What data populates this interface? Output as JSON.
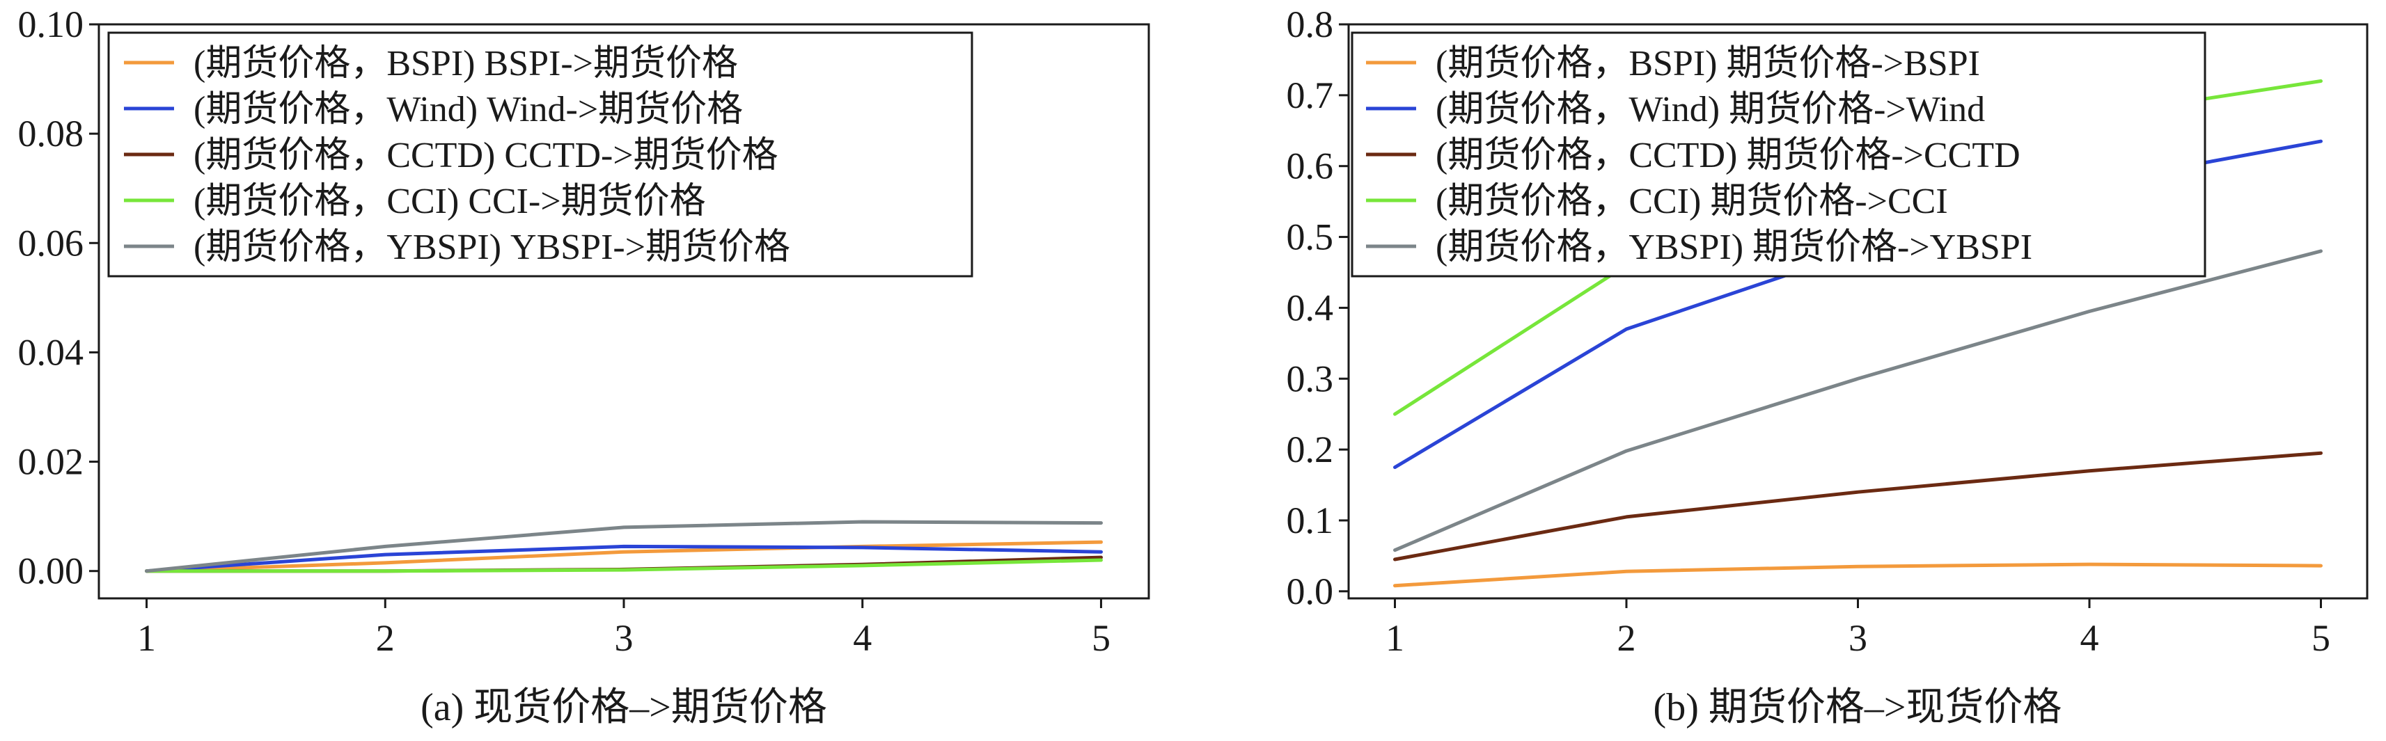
{
  "chart_data": [
    {
      "type": "line",
      "title": "",
      "caption": "(a) 现货价格–>期货价格",
      "xlabel": "",
      "ylabel": "",
      "x": [
        1,
        2,
        3,
        4,
        5
      ],
      "xticks": [
        "1",
        "2",
        "3",
        "4",
        "5"
      ],
      "xlim": [
        0.8,
        5.2
      ],
      "ylim": [
        -0.005,
        0.1
      ],
      "yticks": [
        "0.00",
        "0.02",
        "0.04",
        "0.06",
        "0.08",
        "0.10"
      ],
      "ytick_values": [
        0.0,
        0.02,
        0.04,
        0.06,
        0.08,
        0.1
      ],
      "grid": false,
      "legend_position": "top-left",
      "series": [
        {
          "name": "(期货价格，BSPI) BSPI->期货价格",
          "color": "#f39a3c",
          "values": [
            0.0,
            0.0015,
            0.0035,
            0.0045,
            0.0053
          ]
        },
        {
          "name": "(期货价格，Wind) Wind->期货价格",
          "color": "#2a44d6",
          "values": [
            0.0,
            0.003,
            0.0045,
            0.0043,
            0.0035
          ]
        },
        {
          "name": "(期货价格，CCTD) CCTD->期货价格",
          "color": "#6b2a12",
          "values": [
            0.0,
            0.0,
            0.0003,
            0.0012,
            0.0025
          ]
        },
        {
          "name": "(期货价格，CCI) CCI->期货价格",
          "color": "#77e63a",
          "values": [
            0.0,
            0.0,
            0.0002,
            0.001,
            0.002
          ]
        },
        {
          "name": "(期货价格，YBSPI) YBSPI->期货价格",
          "color": "#7c8589",
          "values": [
            0.0,
            0.0045,
            0.008,
            0.009,
            0.0088
          ]
        }
      ]
    },
    {
      "type": "line",
      "title": "",
      "caption": "(b) 期货价格–>现货价格",
      "xlabel": "",
      "ylabel": "",
      "x": [
        1,
        2,
        3,
        4,
        5
      ],
      "xticks": [
        "1",
        "2",
        "3",
        "4",
        "5"
      ],
      "xlim": [
        0.8,
        5.2
      ],
      "ylim": [
        -0.01,
        0.8
      ],
      "yticks": [
        "0.0",
        "0.1",
        "0.2",
        "0.3",
        "0.4",
        "0.5",
        "0.6",
        "0.7",
        "0.8"
      ],
      "ytick_values": [
        0.0,
        0.1,
        0.2,
        0.3,
        0.4,
        0.5,
        0.6,
        0.7,
        0.8
      ],
      "grid": false,
      "legend_position": "top-left",
      "series": [
        {
          "name": "(期货价格，BSPI) 期货价格->BSPI",
          "color": "#f39a3c",
          "values": [
            0.008,
            0.028,
            0.035,
            0.038,
            0.036
          ]
        },
        {
          "name": "(期货价格，Wind) 期货价格->Wind",
          "color": "#2a44d6",
          "values": [
            0.175,
            0.37,
            0.48,
            0.575,
            0.635
          ]
        },
        {
          "name": "(期货价格，CCTD) 期货价格->CCTD",
          "color": "#6b2a12",
          "values": [
            0.045,
            0.105,
            0.14,
            0.17,
            0.195
          ]
        },
        {
          "name": "(期货价格，CCI) 期货价格->CCI",
          "color": "#77e63a",
          "values": [
            0.25,
            0.46,
            0.58,
            0.67,
            0.72
          ]
        },
        {
          "name": "(期货价格，YBSPI) 期货价格->YBSPI",
          "color": "#7c8589",
          "values": [
            0.058,
            0.198,
            0.3,
            0.395,
            0.48
          ]
        }
      ]
    }
  ]
}
